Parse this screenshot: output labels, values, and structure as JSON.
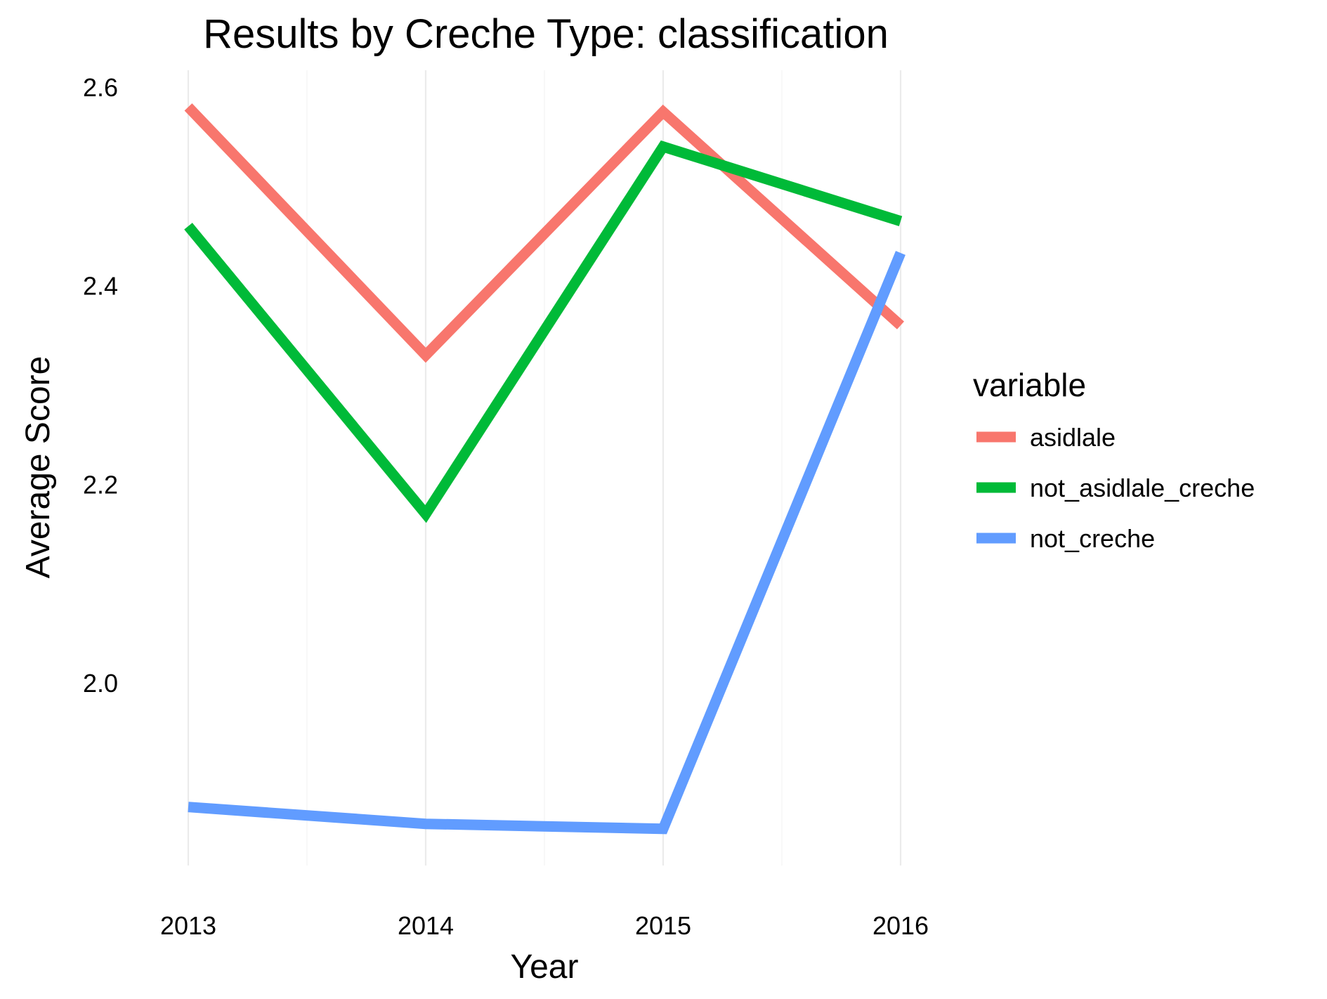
{
  "chart_data": {
    "type": "line",
    "title": "Results by Creche Type: classification",
    "xlabel": "Year",
    "ylabel": "Average Score",
    "x": [
      2013,
      2014,
      2015,
      2016
    ],
    "x_ticks": [
      "2013",
      "2014",
      "2015",
      "2016"
    ],
    "y_ticks": [
      "2.0",
      "2.2",
      "2.4",
      "2.6"
    ],
    "ylim": [
      1.82,
      2.6
    ],
    "grid": true,
    "legend": {
      "title": "variable",
      "position": "right"
    },
    "series": [
      {
        "name": "asidlale",
        "color": "#F8766D",
        "values": [
          2.58,
          2.33,
          2.575,
          2.36
        ]
      },
      {
        "name": "not_asidlale_creche",
        "color": "#00BA38",
        "values": [
          2.46,
          2.17,
          2.54,
          2.465
        ]
      },
      {
        "name": "not_creche",
        "color": "#619CFF",
        "values": [
          1.875,
          1.858,
          1.853,
          2.433
        ]
      }
    ]
  }
}
